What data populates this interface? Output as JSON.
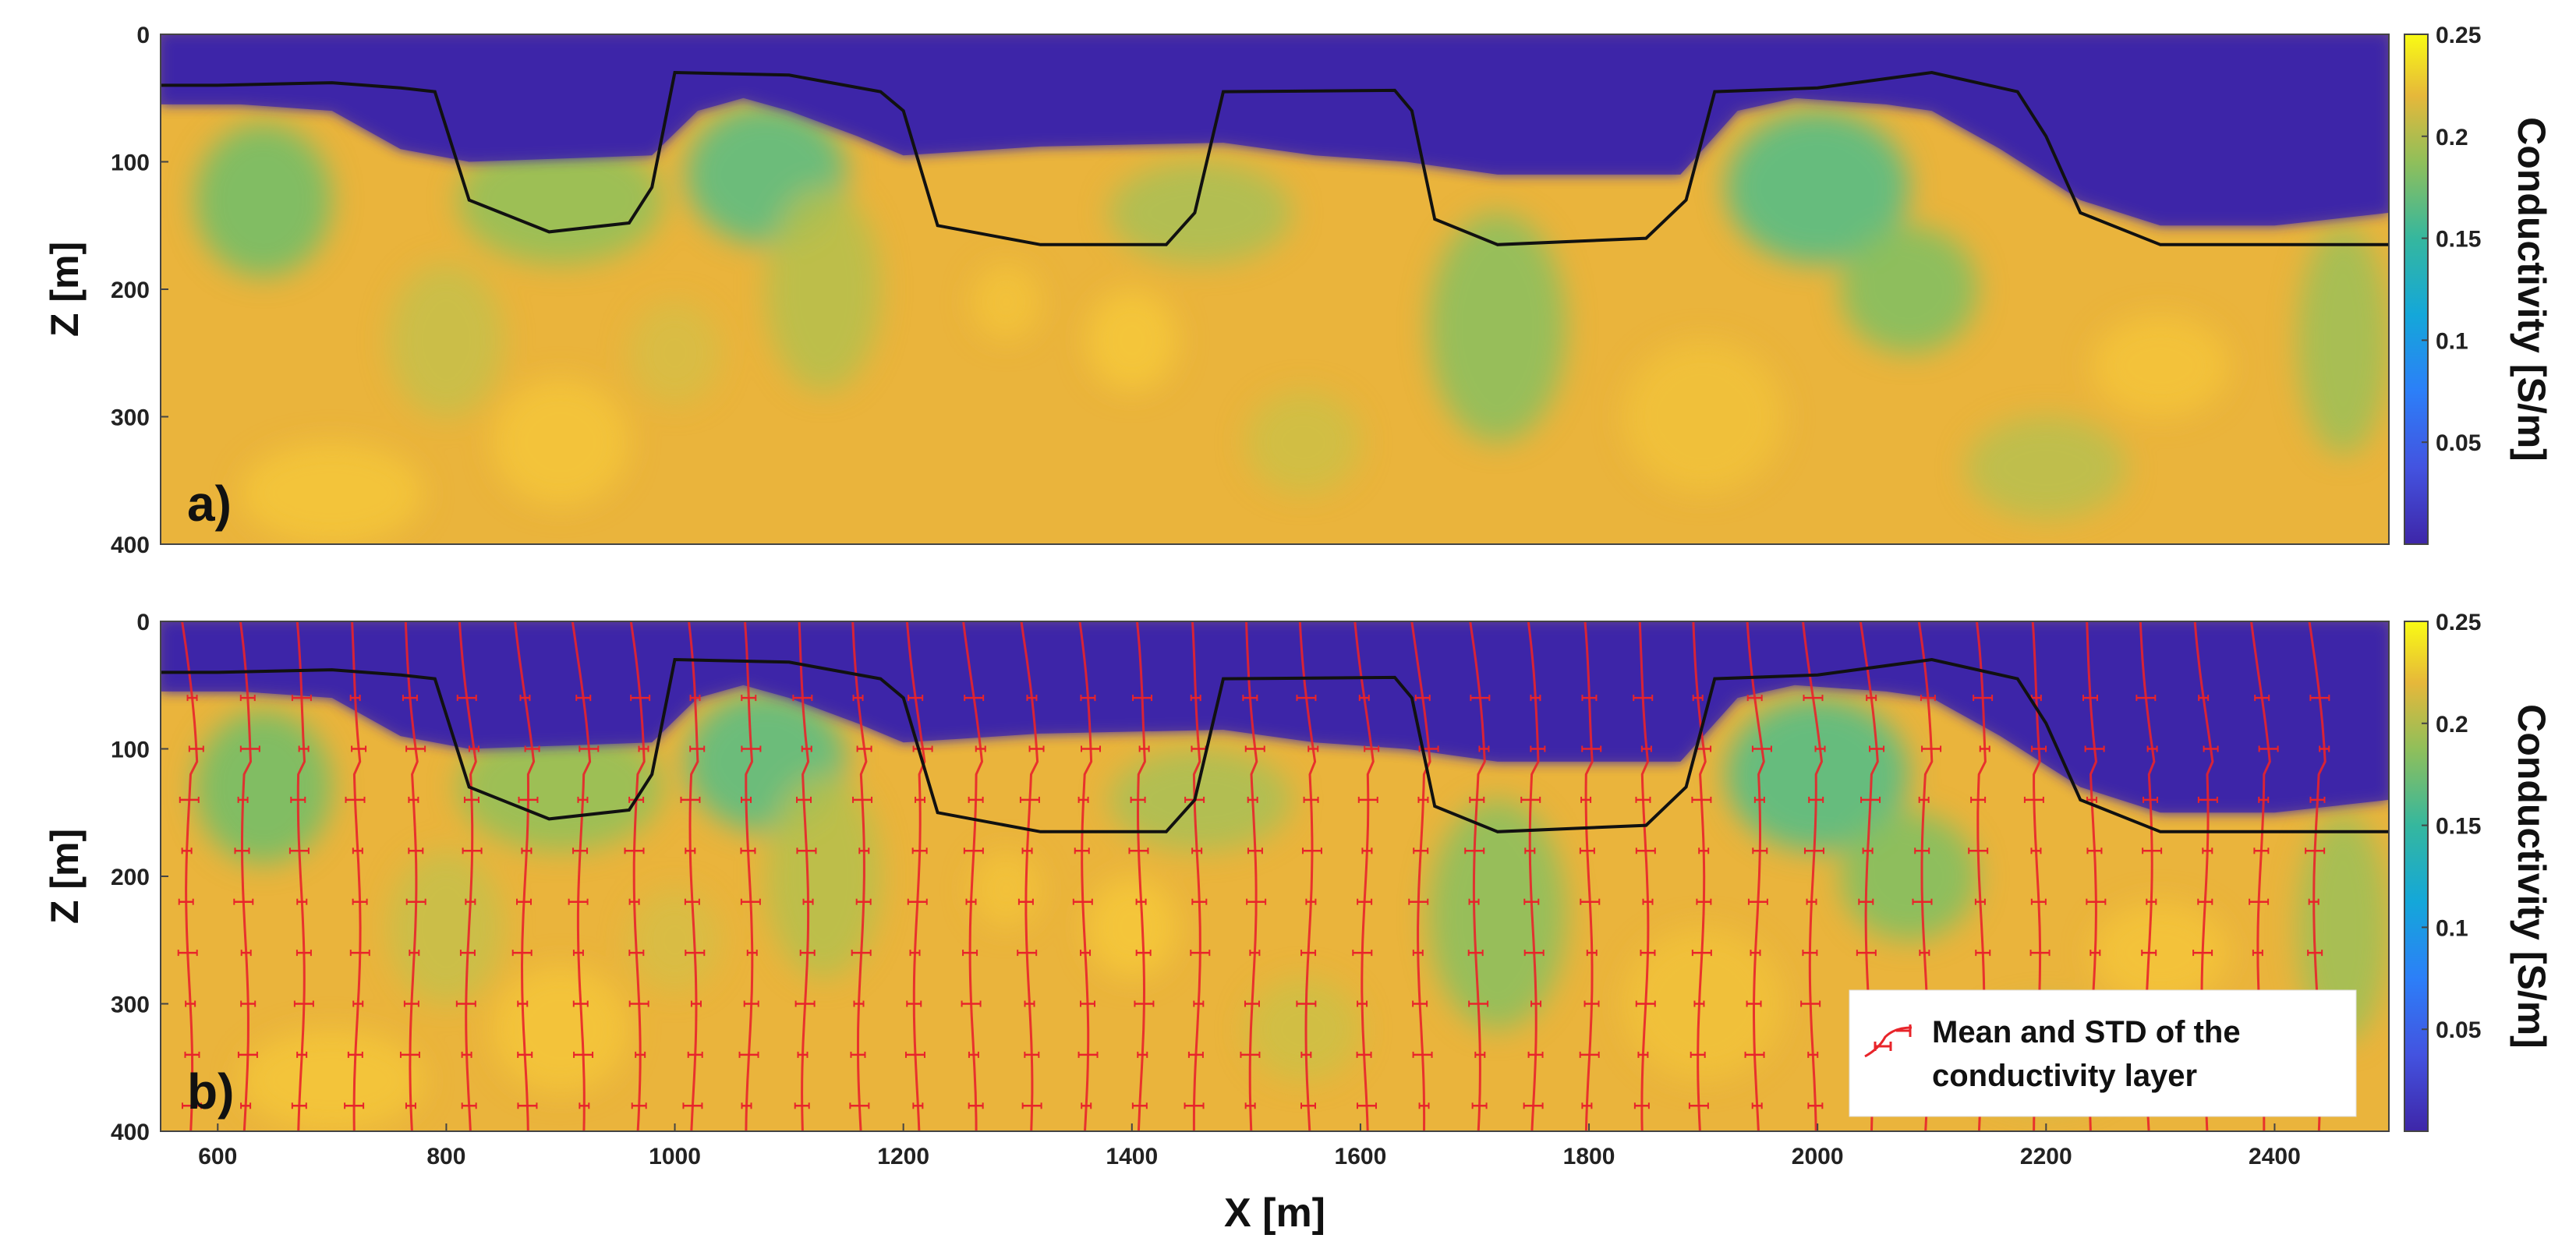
{
  "colors": {
    "resistive": "#3e26a8",
    "conductive": "#f2b538",
    "mid": "#35b79e",
    "boundary": "#111111",
    "profile": "#e8242a"
  },
  "chart_data": [
    {
      "panel": "a)",
      "type": "heatmap",
      "xlim": [
        550,
        2500
      ],
      "ylim": [
        0,
        400
      ],
      "yticks": [
        0,
        100,
        200,
        300,
        400
      ],
      "ylabel": "Z [m]",
      "colorbar": {
        "label": "Conductivity [S/m]",
        "range": [
          0,
          0.25
        ],
        "ticks": [
          0.05,
          0.1,
          0.15,
          0.2,
          0.25
        ],
        "colormap": "parula"
      },
      "boundary_line": {
        "x": [
          550,
          600,
          700,
          760,
          790,
          820,
          890,
          960,
          980,
          1000,
          1100,
          1180,
          1200,
          1230,
          1320,
          1430,
          1455,
          1480,
          1630,
          1645,
          1665,
          1720,
          1850,
          1885,
          1910,
          2000,
          2100,
          2175,
          2200,
          2230,
          2300,
          2500
        ],
        "z": [
          40,
          40,
          38,
          42,
          45,
          130,
          155,
          148,
          120,
          30,
          32,
          45,
          60,
          150,
          165,
          165,
          140,
          45,
          44,
          60,
          145,
          165,
          160,
          130,
          45,
          42,
          30,
          45,
          80,
          140,
          165,
          165
        ]
      }
    },
    {
      "panel": "b)",
      "type": "heatmap",
      "xlim": [
        550,
        2500
      ],
      "xticks": [
        600,
        800,
        1000,
        1200,
        1400,
        1600,
        1800,
        2000,
        2200,
        2400
      ],
      "xlabel": "X [m]",
      "ylim": [
        0,
        400
      ],
      "yticks": [
        0,
        100,
        200,
        300,
        400
      ],
      "ylabel": "Z [m]",
      "colorbar": {
        "label": "Conductivity [S/m]",
        "range": [
          0,
          0.25
        ],
        "ticks": [
          0.05,
          0.1,
          0.15,
          0.2,
          0.25
        ],
        "colormap": "parula"
      },
      "profiles": {
        "x_start": 575,
        "x_end": 2445,
        "spacing": 49,
        "description_legend": "Mean and STD of the conductivity layer"
      },
      "legend_location": "lower-right"
    }
  ],
  "legend": {
    "line1": "Mean and STD of the",
    "line2": "conductivity layer"
  }
}
